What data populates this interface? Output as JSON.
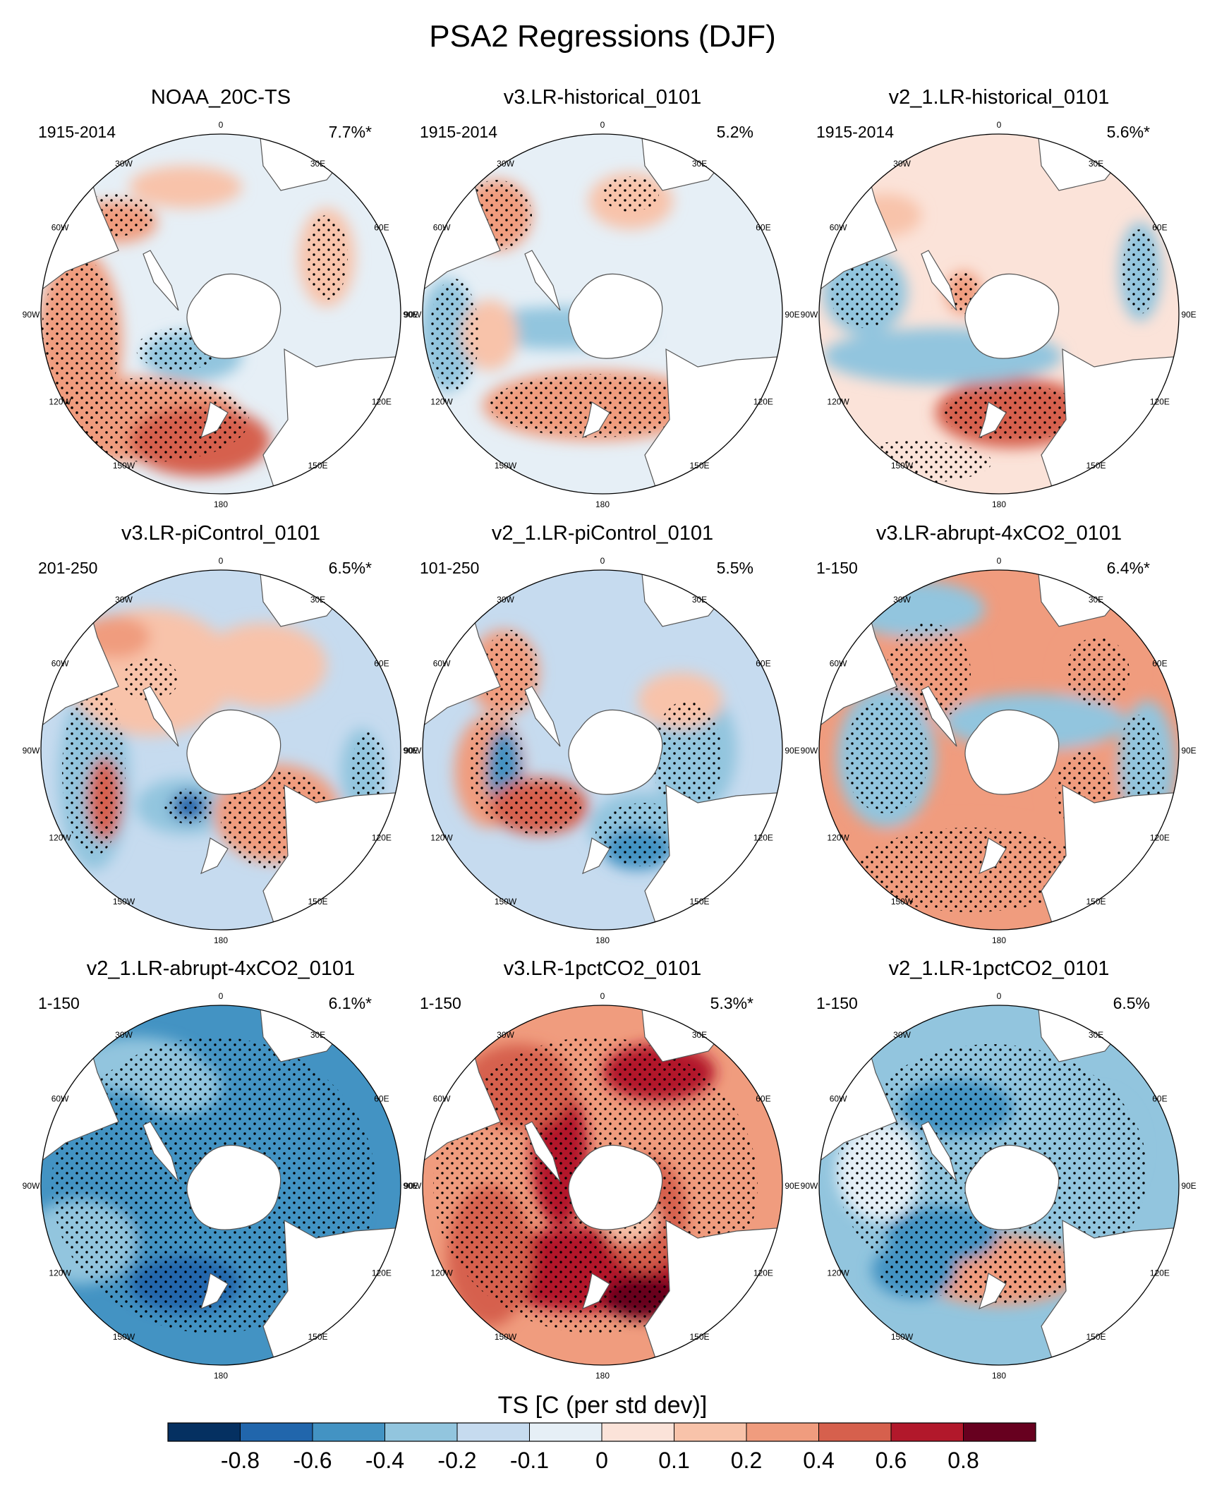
{
  "title": "PSA2 Regressions (DJF)",
  "colorbar_label": "TS [C (per std dev)]",
  "colorbar": {
    "ticks": [
      "-0.8",
      "-0.6",
      "-0.4",
      "-0.2",
      "-0.1",
      "0",
      "0.1",
      "0.2",
      "0.4",
      "0.6",
      "0.8"
    ],
    "colors": [
      "#053061",
      "#2166ac",
      "#4393c3",
      "#92c5de",
      "#c6dbef",
      "#e6eff6",
      "#fbe3d9",
      "#f8c3aa",
      "#f09c7e",
      "#d6604d",
      "#b2182b",
      "#67001f"
    ]
  },
  "lon_labels": [
    "0",
    "30E",
    "60E",
    "90E",
    "120E",
    "150E",
    "180",
    "150W",
    "120W",
    "90W",
    "60W",
    "30W"
  ],
  "chart_data": [
    {
      "type": "heatmap",
      "title": "NOAA_20C-TS",
      "period": "1915-2014",
      "pct": "7.7%*"
    },
    {
      "type": "heatmap",
      "title": "v3.LR-historical_0101",
      "period": "1915-2014",
      "pct": "5.2%"
    },
    {
      "type": "heatmap",
      "title": "v2_1.LR-historical_0101",
      "period": "1915-2014",
      "pct": "5.6%*"
    },
    {
      "type": "heatmap",
      "title": "v3.LR-piControl_0101",
      "period": "201-250",
      "pct": "6.5%*"
    },
    {
      "type": "heatmap",
      "title": "v2_1.LR-piControl_0101",
      "period": "101-250",
      "pct": "5.5%"
    },
    {
      "type": "heatmap",
      "title": "v3.LR-abrupt-4xCO2_0101",
      "period": "1-150",
      "pct": "6.4%*"
    },
    {
      "type": "heatmap",
      "title": "v2_1.LR-abrupt-4xCO2_0101",
      "period": "1-150",
      "pct": "6.1%*"
    },
    {
      "type": "heatmap",
      "title": "v3.LR-1pctCO2_0101",
      "period": "1-150",
      "pct": "5.3%*"
    },
    {
      "type": "heatmap",
      "title": "v2_1.LR-1pctCO2_0101",
      "period": "1-150",
      "pct": "6.5%"
    }
  ]
}
